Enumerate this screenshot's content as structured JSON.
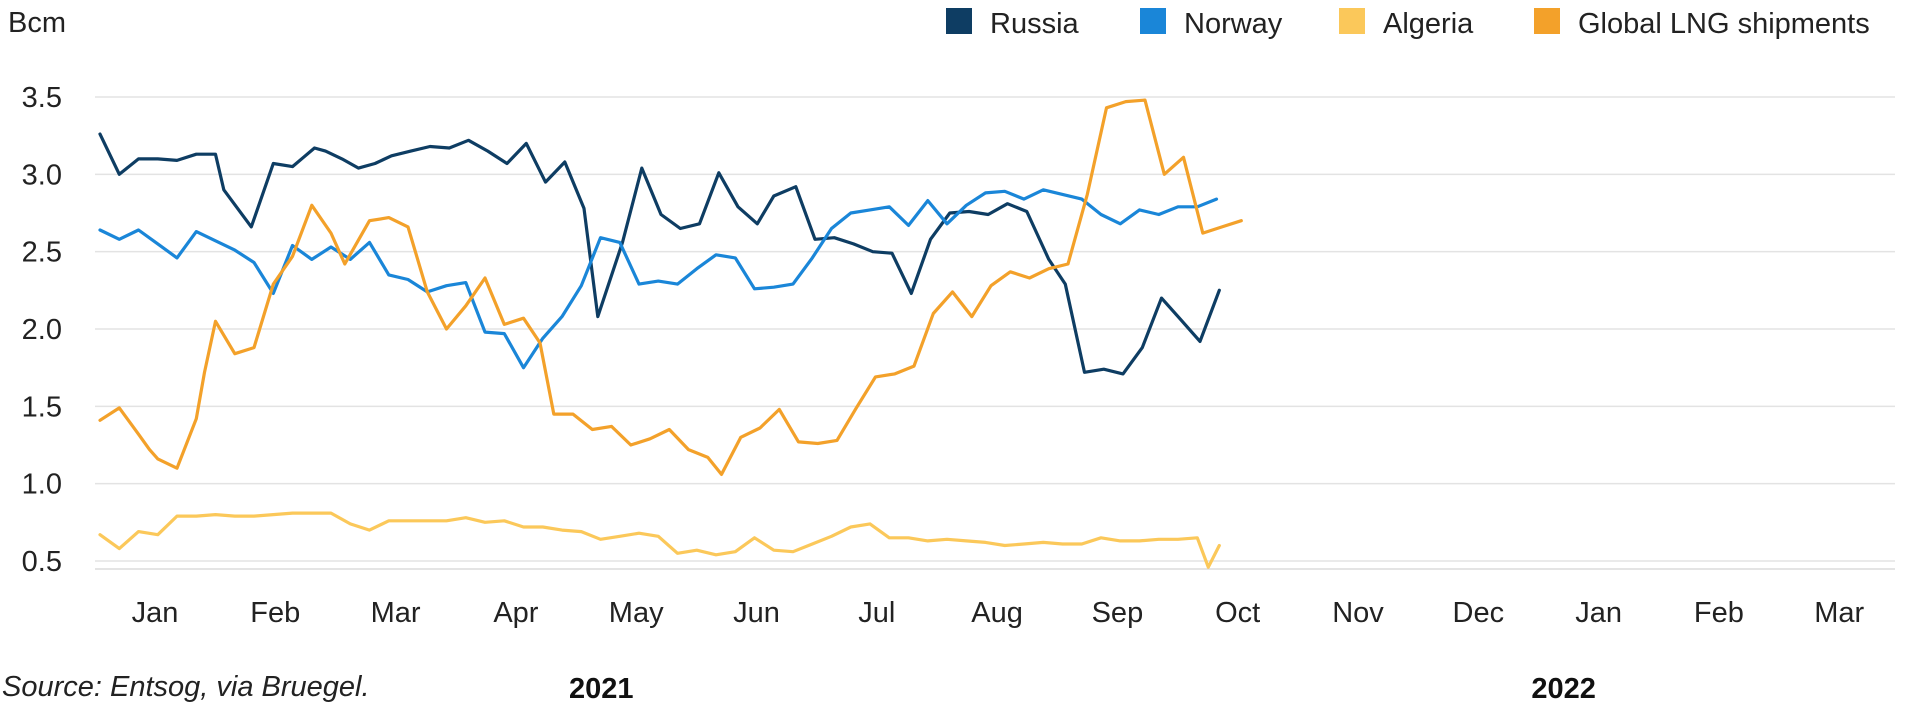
{
  "chart_data": {
    "type": "line",
    "ylabel": "Bcm",
    "ylim": [
      0.5,
      3.5
    ],
    "yticks": [
      "0.5",
      "1.0",
      "1.5",
      "2.0",
      "2.5",
      "3.0",
      "3.5"
    ],
    "month_labels": [
      "Jan",
      "Feb",
      "Mar",
      "Apr",
      "May",
      "Jun",
      "Jul",
      "Aug",
      "Sep",
      "Oct",
      "Nov",
      "Dec",
      "Jan",
      "Feb",
      "Mar"
    ],
    "year_labels": [
      {
        "text": "2021",
        "month_index": 4
      },
      {
        "text": "2022",
        "month_index": 12
      }
    ],
    "source": "Source: Entsog, via Bruegel.",
    "legend_position": "top-right",
    "grid": true,
    "x_unit": "weeks from start of Jan 2021 (weekly observations)",
    "series": [
      {
        "name": "Russia",
        "color": "#0e3d63",
        "points": [
          [
            0,
            3.26
          ],
          [
            0.7,
            3.0
          ],
          [
            1.4,
            3.1
          ],
          [
            2.1,
            3.1
          ],
          [
            2.8,
            3.09
          ],
          [
            3.5,
            3.13
          ],
          [
            4.2,
            3.13
          ],
          [
            4.5,
            2.9
          ],
          [
            5.5,
            2.66
          ],
          [
            6.3,
            3.07
          ],
          [
            7.0,
            3.05
          ],
          [
            7.4,
            3.11
          ],
          [
            7.8,
            3.17
          ],
          [
            8.2,
            3.15
          ],
          [
            8.8,
            3.1
          ],
          [
            9.4,
            3.04
          ],
          [
            10.0,
            3.07
          ],
          [
            10.6,
            3.12
          ],
          [
            11.3,
            3.15
          ],
          [
            12.0,
            3.18
          ],
          [
            12.7,
            3.17
          ],
          [
            13.4,
            3.22
          ],
          [
            14.1,
            3.15
          ],
          [
            14.8,
            3.07
          ],
          [
            15.5,
            3.2
          ],
          [
            16.2,
            2.95
          ],
          [
            16.9,
            3.08
          ],
          [
            17.6,
            2.78
          ],
          [
            18.1,
            2.08
          ],
          [
            19.0,
            2.56
          ],
          [
            19.7,
            3.04
          ],
          [
            20.4,
            2.74
          ],
          [
            21.1,
            2.65
          ],
          [
            21.8,
            2.68
          ],
          [
            22.5,
            3.01
          ],
          [
            23.2,
            2.79
          ],
          [
            23.9,
            2.68
          ],
          [
            24.5,
            2.86
          ],
          [
            25.3,
            2.92
          ],
          [
            26.0,
            2.58
          ],
          [
            26.7,
            2.59
          ],
          [
            27.4,
            2.55
          ],
          [
            28.1,
            2.5
          ],
          [
            28.8,
            2.49
          ],
          [
            29.5,
            2.23
          ],
          [
            30.2,
            2.58
          ],
          [
            30.9,
            2.75
          ],
          [
            31.6,
            2.76
          ],
          [
            32.3,
            2.74
          ],
          [
            33.0,
            2.81
          ],
          [
            33.7,
            2.76
          ],
          [
            34.5,
            2.45
          ],
          [
            35.1,
            2.29
          ],
          [
            35.8,
            1.72
          ],
          [
            36.5,
            1.74
          ],
          [
            37.2,
            1.71
          ],
          [
            37.9,
            1.88
          ],
          [
            38.6,
            2.2
          ],
          [
            39.3,
            2.06
          ],
          [
            40.0,
            1.92
          ],
          [
            40.7,
            2.25
          ]
        ]
      },
      {
        "name": "Norway",
        "color": "#1a86d8",
        "points": [
          [
            0,
            2.64
          ],
          [
            0.7,
            2.58
          ],
          [
            1.4,
            2.64
          ],
          [
            2.1,
            2.55
          ],
          [
            2.8,
            2.46
          ],
          [
            3.5,
            2.63
          ],
          [
            4.2,
            2.57
          ],
          [
            4.9,
            2.51
          ],
          [
            5.6,
            2.43
          ],
          [
            6.3,
            2.23
          ],
          [
            7.0,
            2.54
          ],
          [
            7.7,
            2.45
          ],
          [
            8.4,
            2.53
          ],
          [
            9.1,
            2.45
          ],
          [
            9.8,
            2.56
          ],
          [
            10.5,
            2.35
          ],
          [
            11.2,
            2.32
          ],
          [
            11.9,
            2.24
          ],
          [
            12.6,
            2.28
          ],
          [
            13.3,
            2.3
          ],
          [
            14.0,
            1.98
          ],
          [
            14.7,
            1.97
          ],
          [
            15.4,
            1.75
          ],
          [
            16.1,
            1.94
          ],
          [
            16.8,
            2.08
          ],
          [
            17.5,
            2.28
          ],
          [
            18.2,
            2.59
          ],
          [
            18.9,
            2.56
          ],
          [
            19.6,
            2.29
          ],
          [
            20.3,
            2.31
          ],
          [
            21.0,
            2.29
          ],
          [
            21.7,
            2.39
          ],
          [
            22.4,
            2.48
          ],
          [
            23.1,
            2.46
          ],
          [
            23.8,
            2.26
          ],
          [
            24.5,
            2.27
          ],
          [
            25.2,
            2.29
          ],
          [
            25.9,
            2.46
          ],
          [
            26.6,
            2.65
          ],
          [
            27.3,
            2.75
          ],
          [
            28.0,
            2.77
          ],
          [
            28.7,
            2.79
          ],
          [
            29.4,
            2.67
          ],
          [
            30.1,
            2.83
          ],
          [
            30.8,
            2.68
          ],
          [
            31.5,
            2.8
          ],
          [
            32.2,
            2.88
          ],
          [
            32.9,
            2.89
          ],
          [
            33.6,
            2.84
          ],
          [
            34.3,
            2.9
          ],
          [
            35.0,
            2.87
          ],
          [
            35.7,
            2.84
          ],
          [
            36.4,
            2.74
          ],
          [
            37.1,
            2.68
          ],
          [
            37.8,
            2.77
          ],
          [
            38.5,
            2.74
          ],
          [
            39.2,
            2.79
          ],
          [
            39.9,
            2.79
          ],
          [
            40.6,
            2.84
          ]
        ]
      },
      {
        "name": "Algeria",
        "color": "#fbc85a",
        "points": [
          [
            0,
            0.67
          ],
          [
            0.7,
            0.58
          ],
          [
            1.4,
            0.69
          ],
          [
            2.1,
            0.67
          ],
          [
            2.8,
            0.79
          ],
          [
            3.5,
            0.79
          ],
          [
            4.2,
            0.8
          ],
          [
            4.9,
            0.79
          ],
          [
            5.6,
            0.79
          ],
          [
            6.3,
            0.8
          ],
          [
            7.0,
            0.81
          ],
          [
            7.7,
            0.81
          ],
          [
            8.4,
            0.81
          ],
          [
            9.1,
            0.74
          ],
          [
            9.8,
            0.7
          ],
          [
            10.5,
            0.76
          ],
          [
            11.2,
            0.76
          ],
          [
            11.9,
            0.76
          ],
          [
            12.6,
            0.76
          ],
          [
            13.3,
            0.78
          ],
          [
            14.0,
            0.75
          ],
          [
            14.7,
            0.76
          ],
          [
            15.4,
            0.72
          ],
          [
            16.1,
            0.72
          ],
          [
            16.8,
            0.7
          ],
          [
            17.5,
            0.69
          ],
          [
            18.2,
            0.64
          ],
          [
            18.9,
            0.66
          ],
          [
            19.6,
            0.68
          ],
          [
            20.3,
            0.66
          ],
          [
            21.0,
            0.55
          ],
          [
            21.7,
            0.57
          ],
          [
            22.4,
            0.54
          ],
          [
            23.1,
            0.56
          ],
          [
            23.8,
            0.65
          ],
          [
            24.5,
            0.57
          ],
          [
            25.2,
            0.56
          ],
          [
            25.9,
            0.61
          ],
          [
            26.6,
            0.66
          ],
          [
            27.3,
            0.72
          ],
          [
            28.0,
            0.74
          ],
          [
            28.7,
            0.65
          ],
          [
            29.4,
            0.65
          ],
          [
            30.1,
            0.63
          ],
          [
            30.8,
            0.64
          ],
          [
            31.5,
            0.63
          ],
          [
            32.2,
            0.62
          ],
          [
            32.9,
            0.6
          ],
          [
            33.6,
            0.61
          ],
          [
            34.3,
            0.62
          ],
          [
            35.0,
            0.61
          ],
          [
            35.7,
            0.61
          ],
          [
            36.4,
            0.65
          ],
          [
            37.1,
            0.63
          ],
          [
            37.8,
            0.63
          ],
          [
            38.5,
            0.64
          ],
          [
            39.2,
            0.64
          ],
          [
            39.9,
            0.65
          ],
          [
            40.3,
            0.46
          ],
          [
            40.7,
            0.6
          ]
        ]
      },
      {
        "name": "Global LNG shipments",
        "color": "#f3a12a",
        "points": [
          [
            0,
            1.41
          ],
          [
            0.7,
            1.49
          ],
          [
            1.4,
            1.32
          ],
          [
            1.8,
            1.22
          ],
          [
            2.1,
            1.16
          ],
          [
            2.8,
            1.1
          ],
          [
            3.5,
            1.42
          ],
          [
            3.8,
            1.72
          ],
          [
            4.2,
            2.05
          ],
          [
            4.9,
            1.84
          ],
          [
            5.6,
            1.88
          ],
          [
            6.3,
            2.29
          ],
          [
            7.0,
            2.47
          ],
          [
            7.7,
            2.8
          ],
          [
            8.4,
            2.62
          ],
          [
            8.9,
            2.42
          ],
          [
            9.8,
            2.7
          ],
          [
            10.5,
            2.72
          ],
          [
            11.2,
            2.66
          ],
          [
            11.9,
            2.24
          ],
          [
            12.6,
            2.0
          ],
          [
            13.3,
            2.15
          ],
          [
            14.0,
            2.33
          ],
          [
            14.7,
            2.03
          ],
          [
            15.4,
            2.07
          ],
          [
            16.0,
            1.91
          ],
          [
            16.5,
            1.45
          ],
          [
            17.2,
            1.45
          ],
          [
            17.9,
            1.35
          ],
          [
            18.6,
            1.37
          ],
          [
            19.3,
            1.25
          ],
          [
            20.0,
            1.29
          ],
          [
            20.7,
            1.35
          ],
          [
            21.4,
            1.22
          ],
          [
            22.1,
            1.17
          ],
          [
            22.6,
            1.06
          ],
          [
            23.3,
            1.3
          ],
          [
            24.0,
            1.36
          ],
          [
            24.7,
            1.48
          ],
          [
            25.4,
            1.27
          ],
          [
            26.1,
            1.26
          ],
          [
            26.8,
            1.28
          ],
          [
            27.5,
            1.49
          ],
          [
            28.2,
            1.69
          ],
          [
            28.9,
            1.71
          ],
          [
            29.6,
            1.76
          ],
          [
            30.3,
            2.1
          ],
          [
            31.0,
            2.24
          ],
          [
            31.7,
            2.08
          ],
          [
            32.4,
            2.28
          ],
          [
            33.1,
            2.37
          ],
          [
            33.8,
            2.33
          ],
          [
            34.5,
            2.39
          ],
          [
            35.2,
            2.42
          ],
          [
            35.9,
            2.87
          ],
          [
            36.6,
            3.43
          ],
          [
            37.3,
            3.47
          ],
          [
            38.0,
            3.48
          ],
          [
            38.7,
            3.0
          ],
          [
            39.4,
            3.11
          ],
          [
            40.1,
            2.62
          ],
          [
            40.8,
            2.66
          ],
          [
            41.5,
            2.7
          ]
        ]
      }
    ]
  }
}
